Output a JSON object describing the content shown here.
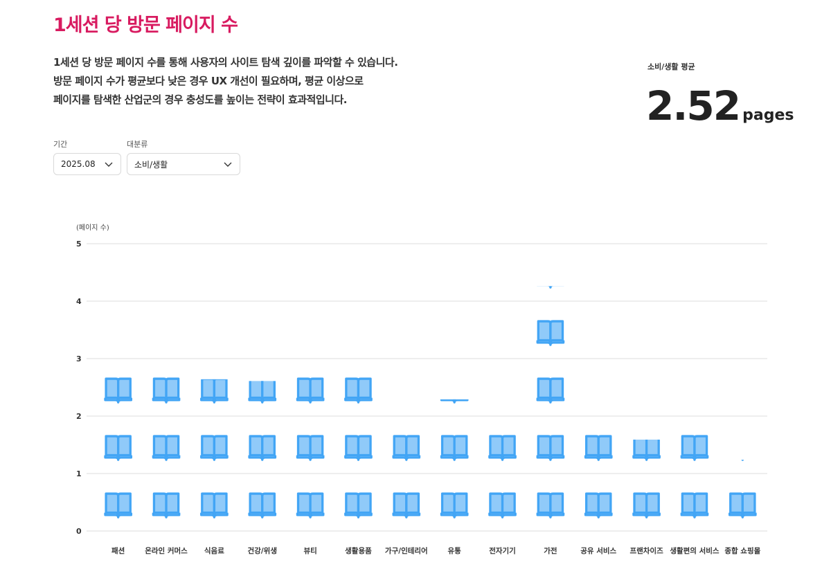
{
  "header": {
    "title": "1세션 당 방문 페이지 수",
    "description": [
      "1세션 당 방문 페이지 수를 통해 사용자의 사이트 탐색 깊이를 파악할 수 있습니다.",
      "방문 페이지 수가 평균보다 낮은 경우 UX 개선이 필요하며, 평균 이상으로",
      "페이지를 탐색한 산업군의 경우 충성도를 높이는 전략이 효과적입니다."
    ]
  },
  "summary": {
    "label": "소비/생활 평균",
    "value": "2.52",
    "unit": "pages"
  },
  "filters": {
    "period": {
      "label": "기간",
      "value": "2025.08"
    },
    "category": {
      "label": "대분류",
      "value": "소비/생활"
    }
  },
  "colors": {
    "title": "#d81b60",
    "icon_fill": "#90caf9",
    "icon_stroke": "#42a5f5",
    "grid": "#dddddd"
  },
  "chart_data": {
    "type": "bar",
    "icon": "book-icon",
    "ylabel": "(페이지 수)",
    "ylim": [
      0,
      5
    ],
    "yticks": [
      "0",
      "1",
      "2",
      "3",
      "4",
      "5"
    ],
    "grid": true,
    "categories": [
      "패션",
      "온라인 커머스",
      "식음료",
      "건강/위생",
      "뷰티",
      "생활용품",
      "가구/인테리어",
      "유통",
      "전자기기",
      "가전",
      "공유 서비스",
      "프랜차이즈",
      "생활편의 서비스",
      "종합 쇼핑몰"
    ],
    "values": [
      2.97,
      2.7,
      2.64,
      2.61,
      2.9,
      2.8,
      2.08,
      2.29,
      1.96,
      4.26,
      1.68,
      1.59,
      1.7,
      1.24
    ]
  }
}
